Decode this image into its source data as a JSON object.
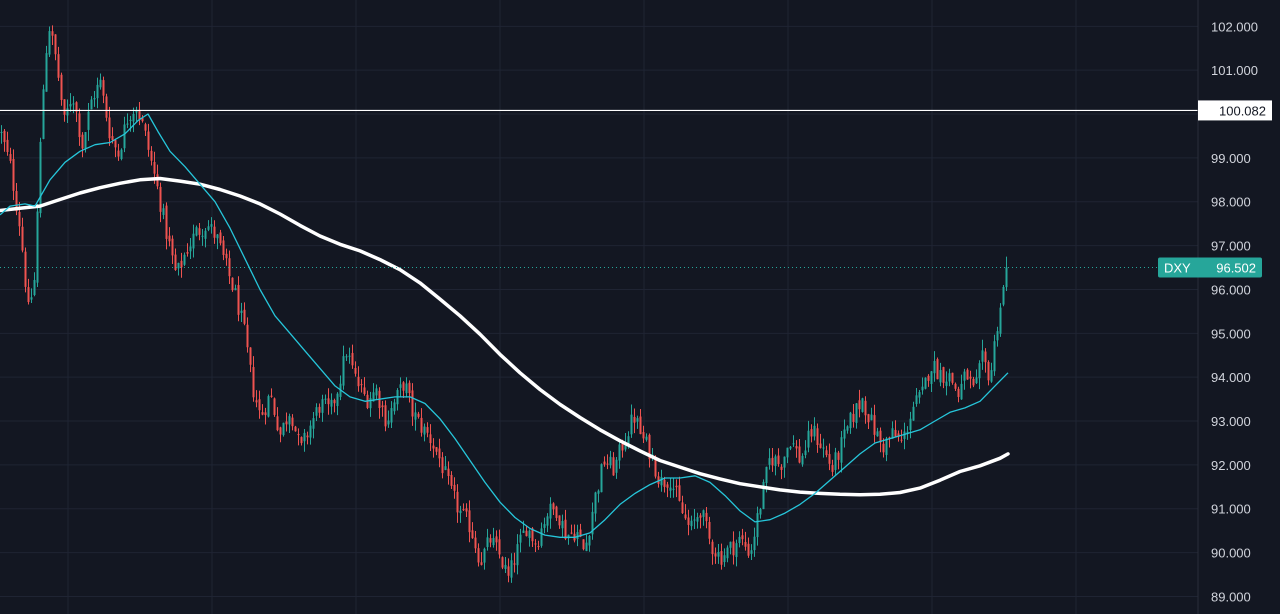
{
  "chart_data": {
    "type": "candlestick",
    "symbol": "DXY",
    "last_price": 96.502,
    "last_price_label": "96.502",
    "horizontal_line": {
      "value": 100.082,
      "label": "100.082"
    },
    "y_axis": {
      "range": [
        88.6,
        102.6
      ],
      "ticks": [
        89,
        90,
        91,
        92,
        93,
        94,
        95,
        96,
        97,
        98,
        99,
        101,
        102
      ],
      "tick_labels": [
        "89.000",
        "90.000",
        "91.000",
        "92.000",
        "93.000",
        "94.000",
        "95.000",
        "96.000",
        "97.000",
        "98.000",
        "99.000",
        "101.000",
        "102.000"
      ]
    },
    "grid": true,
    "colors": {
      "background": "#131722",
      "grid": "#1f2433",
      "up": "#26a69a",
      "down": "#ef5350",
      "fast_ma": "#26c6da",
      "slow_ma": "#ffffff",
      "badge": "#26a69a",
      "axis_text": "#d1d4dc"
    },
    "close_path": [
      [
        0,
        99.6
      ],
      [
        10,
        98.8
      ],
      [
        20,
        97.4
      ],
      [
        28,
        95.5
      ],
      [
        34,
        96.2
      ],
      [
        42,
        100.3
      ],
      [
        48,
        102.1
      ],
      [
        56,
        101.2
      ],
      [
        64,
        99.8
      ],
      [
        72,
        100.5
      ],
      [
        82,
        99.3
      ],
      [
        92,
        100.4
      ],
      [
        100,
        100.7
      ],
      [
        110,
        99.5
      ],
      [
        118,
        99.1
      ],
      [
        128,
        100.0
      ],
      [
        136,
        100.2
      ],
      [
        144,
        99.6
      ],
      [
        152,
        98.8
      ],
      [
        158,
        98.2
      ],
      [
        166,
        97.3
      ],
      [
        176,
        96.3
      ],
      [
        186,
        96.9
      ],
      [
        196,
        97.3
      ],
      [
        206,
        97.5
      ],
      [
        216,
        97.2
      ],
      [
        226,
        96.5
      ],
      [
        236,
        95.8
      ],
      [
        244,
        95.0
      ],
      [
        252,
        93.8
      ],
      [
        260,
        93.1
      ],
      [
        270,
        93.6
      ],
      [
        280,
        92.7
      ],
      [
        290,
        93.3
      ],
      [
        300,
        92.3
      ],
      [
        310,
        92.9
      ],
      [
        320,
        93.4
      ],
      [
        330,
        93.2
      ],
      [
        338,
        93.8
      ],
      [
        346,
        94.6
      ],
      [
        356,
        93.9
      ],
      [
        366,
        93.5
      ],
      [
        376,
        93.7
      ],
      [
        386,
        93.0
      ],
      [
        396,
        93.5
      ],
      [
        404,
        93.9
      ],
      [
        412,
        93.2
      ],
      [
        420,
        92.9
      ],
      [
        430,
        92.6
      ],
      [
        440,
        92.1
      ],
      [
        450,
        91.4
      ],
      [
        460,
        90.9
      ],
      [
        470,
        90.6
      ],
      [
        480,
        89.8
      ],
      [
        490,
        90.3
      ],
      [
        500,
        89.9
      ],
      [
        508,
        89.4
      ],
      [
        516,
        90.0
      ],
      [
        526,
        90.6
      ],
      [
        536,
        90.2
      ],
      [
        546,
        90.9
      ],
      [
        556,
        91.0
      ],
      [
        566,
        90.4
      ],
      [
        576,
        90.5
      ],
      [
        584,
        90.0
      ],
      [
        594,
        91.2
      ],
      [
        604,
        92.1
      ],
      [
        614,
        91.9
      ],
      [
        624,
        92.6
      ],
      [
        634,
        93.1
      ],
      [
        642,
        92.6
      ],
      [
        650,
        92.3
      ],
      [
        660,
        91.6
      ],
      [
        670,
        91.7
      ],
      [
        680,
        91.0
      ],
      [
        690,
        90.5
      ],
      [
        700,
        91.0
      ],
      [
        710,
        90.2
      ],
      [
        720,
        89.9
      ],
      [
        730,
        90.1
      ],
      [
        740,
        90.3
      ],
      [
        750,
        90.0
      ],
      [
        760,
        91.1
      ],
      [
        770,
        92.2
      ],
      [
        780,
        92.0
      ],
      [
        790,
        92.6
      ],
      [
        800,
        92.1
      ],
      [
        812,
        92.8
      ],
      [
        822,
        92.4
      ],
      [
        832,
        91.9
      ],
      [
        842,
        92.5
      ],
      [
        852,
        93.1
      ],
      [
        862,
        93.5
      ],
      [
        872,
        92.9
      ],
      [
        882,
        92.4
      ],
      [
        892,
        92.7
      ],
      [
        902,
        92.5
      ],
      [
        912,
        93.3
      ],
      [
        922,
        93.6
      ],
      [
        930,
        94.3
      ],
      [
        940,
        94.1
      ],
      [
        950,
        94.0
      ],
      [
        958,
        93.6
      ],
      [
        966,
        94.1
      ],
      [
        974,
        93.6
      ],
      [
        982,
        94.4
      ],
      [
        990,
        94.0
      ],
      [
        996,
        95.1
      ],
      [
        1002,
        95.9
      ],
      [
        1008,
        96.5
      ]
    ],
    "fast_ma_path": [
      [
        0,
        97.7
      ],
      [
        10,
        97.9
      ],
      [
        25,
        97.95
      ],
      [
        35,
        97.9
      ],
      [
        50,
        98.5
      ],
      [
        65,
        98.9
      ],
      [
        80,
        99.15
      ],
      [
        95,
        99.3
      ],
      [
        110,
        99.35
      ],
      [
        125,
        99.55
      ],
      [
        138,
        99.85
      ],
      [
        148,
        100.0
      ],
      [
        158,
        99.6
      ],
      [
        170,
        99.15
      ],
      [
        185,
        98.8
      ],
      [
        200,
        98.4
      ],
      [
        215,
        98.0
      ],
      [
        230,
        97.4
      ],
      [
        245,
        96.7
      ],
      [
        260,
        96.0
      ],
      [
        275,
        95.4
      ],
      [
        290,
        95.0
      ],
      [
        305,
        94.6
      ],
      [
        320,
        94.2
      ],
      [
        335,
        93.8
      ],
      [
        350,
        93.55
      ],
      [
        365,
        93.45
      ],
      [
        380,
        93.5
      ],
      [
        395,
        93.55
      ],
      [
        410,
        93.55
      ],
      [
        425,
        93.4
      ],
      [
        440,
        93.05
      ],
      [
        455,
        92.6
      ],
      [
        470,
        92.1
      ],
      [
        485,
        91.6
      ],
      [
        500,
        91.15
      ],
      [
        515,
        90.8
      ],
      [
        530,
        90.55
      ],
      [
        545,
        90.4
      ],
      [
        560,
        90.35
      ],
      [
        575,
        90.35
      ],
      [
        590,
        90.45
      ],
      [
        605,
        90.75
      ],
      [
        620,
        91.1
      ],
      [
        635,
        91.35
      ],
      [
        650,
        91.55
      ],
      [
        665,
        91.7
      ],
      [
        680,
        91.7
      ],
      [
        695,
        91.75
      ],
      [
        710,
        91.6
      ],
      [
        725,
        91.3
      ],
      [
        740,
        90.95
      ],
      [
        755,
        90.7
      ],
      [
        770,
        90.75
      ],
      [
        785,
        90.9
      ],
      [
        800,
        91.1
      ],
      [
        815,
        91.35
      ],
      [
        830,
        91.65
      ],
      [
        845,
        91.95
      ],
      [
        860,
        92.25
      ],
      [
        875,
        92.5
      ],
      [
        890,
        92.6
      ],
      [
        905,
        92.7
      ],
      [
        920,
        92.8
      ],
      [
        935,
        93.0
      ],
      [
        950,
        93.2
      ],
      [
        965,
        93.3
      ],
      [
        980,
        93.45
      ],
      [
        995,
        93.8
      ],
      [
        1008,
        94.1
      ]
    ],
    "slow_ma_path": [
      [
        0,
        97.8
      ],
      [
        20,
        97.85
      ],
      [
        40,
        97.9
      ],
      [
        60,
        98.05
      ],
      [
        80,
        98.2
      ],
      [
        100,
        98.32
      ],
      [
        120,
        98.42
      ],
      [
        140,
        98.5
      ],
      [
        160,
        98.53
      ],
      [
        180,
        98.47
      ],
      [
        200,
        98.4
      ],
      [
        220,
        98.28
      ],
      [
        240,
        98.13
      ],
      [
        260,
        97.95
      ],
      [
        280,
        97.72
      ],
      [
        300,
        97.46
      ],
      [
        320,
        97.22
      ],
      [
        340,
        97.03
      ],
      [
        360,
        96.88
      ],
      [
        380,
        96.68
      ],
      [
        400,
        96.45
      ],
      [
        420,
        96.15
      ],
      [
        440,
        95.78
      ],
      [
        460,
        95.4
      ],
      [
        480,
        94.98
      ],
      [
        500,
        94.52
      ],
      [
        520,
        94.1
      ],
      [
        540,
        93.72
      ],
      [
        560,
        93.38
      ],
      [
        580,
        93.08
      ],
      [
        600,
        92.8
      ],
      [
        620,
        92.55
      ],
      [
        640,
        92.32
      ],
      [
        660,
        92.1
      ],
      [
        680,
        91.95
      ],
      [
        700,
        91.8
      ],
      [
        720,
        91.68
      ],
      [
        740,
        91.57
      ],
      [
        760,
        91.5
      ],
      [
        780,
        91.43
      ],
      [
        800,
        91.38
      ],
      [
        820,
        91.35
      ],
      [
        840,
        91.33
      ],
      [
        860,
        91.32
      ],
      [
        880,
        91.33
      ],
      [
        900,
        91.37
      ],
      [
        920,
        91.47
      ],
      [
        940,
        91.65
      ],
      [
        960,
        91.85
      ],
      [
        980,
        91.98
      ],
      [
        1000,
        92.15
      ],
      [
        1008,
        92.25
      ]
    ]
  }
}
